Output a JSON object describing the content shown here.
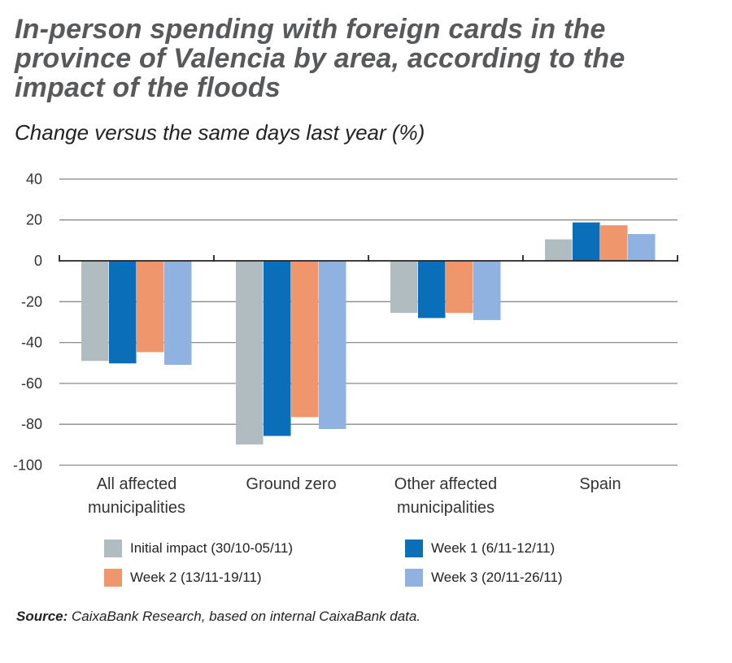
{
  "title": "In-person spending with foreign cards in the province of Valencia by area, according to the impact of the floods",
  "subtitle": "Change versus the same days last year (%)",
  "source_label": "Source:",
  "source_text": " CaixaBank Research, based on internal CaixaBank data.",
  "chart_data": {
    "type": "bar",
    "title": "In-person spending with foreign cards in the province of Valencia by area, according to the impact of the floods",
    "subtitle": "Change versus the same days last year (%)",
    "categories": [
      [
        "All affected",
        "municipalities"
      ],
      [
        "Ground zero"
      ],
      [
        "Other affected",
        "municipalities"
      ],
      [
        "Spain"
      ]
    ],
    "ylim": [
      -100,
      40
    ],
    "yticks": [
      40,
      20,
      0,
      -20,
      -40,
      -60,
      -80,
      -100
    ],
    "grid": true,
    "legend_placement": "bottom",
    "series": [
      {
        "name": "Initial impact (30/10-05/11)",
        "color": "#b1bcc1",
        "values": [
          -49,
          -89.9,
          -25.5,
          10.5
        ]
      },
      {
        "name": "Week 1 (6/11-12/11)",
        "color": "#0a6fb8",
        "values": [
          -50.2,
          -85.7,
          -28,
          18.8
        ]
      },
      {
        "name": "Week 2 (13/11-19/11)",
        "color": "#f0966c",
        "values": [
          -44.7,
          -76.5,
          -25.5,
          17.4
        ]
      },
      {
        "name": "Week 3 (20/11-26/11)",
        "color": "#8fb2e0",
        "values": [
          -50.9,
          -82.3,
          -29,
          13.1
        ]
      }
    ]
  }
}
